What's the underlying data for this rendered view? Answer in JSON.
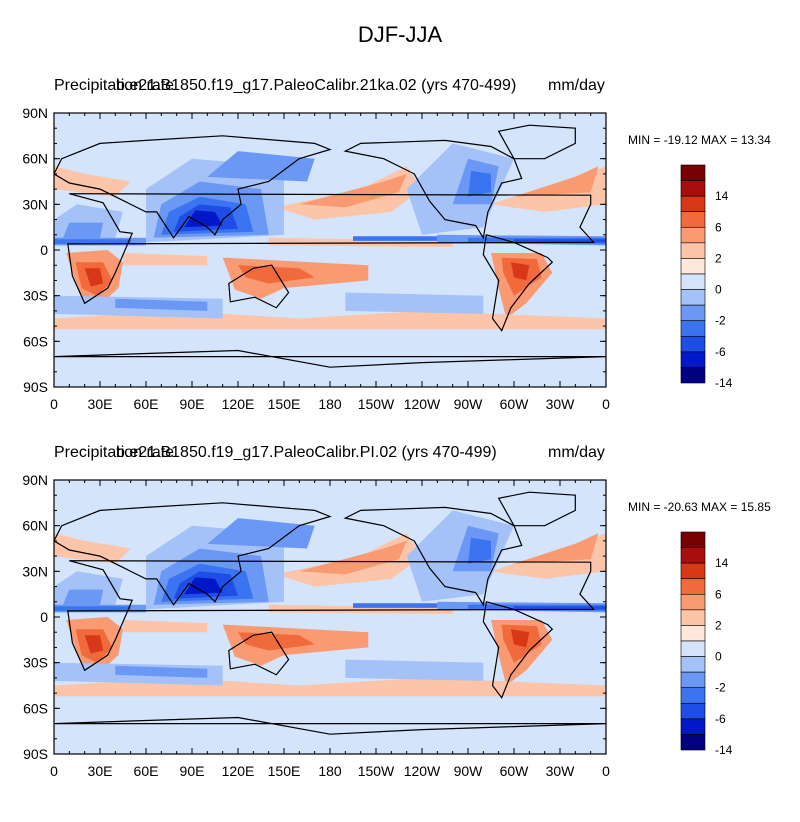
{
  "title": "DJF-JJA",
  "colorbar": {
    "colors": [
      "#000080",
      "#0018c8",
      "#1e4ee6",
      "#3b74f0",
      "#6b98f4",
      "#a4c2f8",
      "#d3e4fb",
      "#fde8da",
      "#fcc4a8",
      "#f99a72",
      "#f06a3c",
      "#d83818",
      "#a80e0c",
      "#780000"
    ],
    "labels": [
      "14",
      "6",
      "2",
      "0",
      "-2",
      "-6",
      "-14"
    ]
  },
  "chart_data": [
    {
      "type": "heatmap",
      "name": "Precipitation rate (DJF-JJA), 21ka run",
      "left_label": "Precipitation rate",
      "center_label": "b.e21.B1850.f19_g17.PaleoCalibr.21ka.02 (yrs 470-499)",
      "right_label": "mm/day",
      "min_max_label": "MIN = -19.12 MAX =  13.34",
      "min": -19.12,
      "max": 13.34,
      "units": "mm/day",
      "xlim": [
        0,
        360
      ],
      "ylim": [
        -90,
        90
      ],
      "x_ticks": [
        "0",
        "30E",
        "60E",
        "90E",
        "120E",
        "150E",
        "180",
        "150W",
        "120W",
        "90W",
        "60W",
        "30W",
        "0"
      ],
      "y_ticks": [
        "90N",
        "60N",
        "30N",
        "0",
        "30S",
        "60S",
        "90S"
      ]
    },
    {
      "type": "heatmap",
      "name": "Precipitation rate (DJF-JJA), PI run",
      "left_label": "Precipitation rate",
      "center_label": "b.e21.B1850.f19_g17.PaleoCalibr.PI.02 (yrs 470-499)",
      "right_label": "mm/day",
      "min_max_label": "MIN = -20.63 MAX =  15.85",
      "min": -20.63,
      "max": 15.85,
      "units": "mm/day",
      "xlim": [
        0,
        360
      ],
      "ylim": [
        -90,
        90
      ],
      "x_ticks": [
        "0",
        "30E",
        "60E",
        "90E",
        "120E",
        "150E",
        "180",
        "150W",
        "120W",
        "90W",
        "60W",
        "30W",
        "0"
      ],
      "y_ticks": [
        "90N",
        "60N",
        "30N",
        "0",
        "30S",
        "60S",
        "90S"
      ]
    }
  ]
}
